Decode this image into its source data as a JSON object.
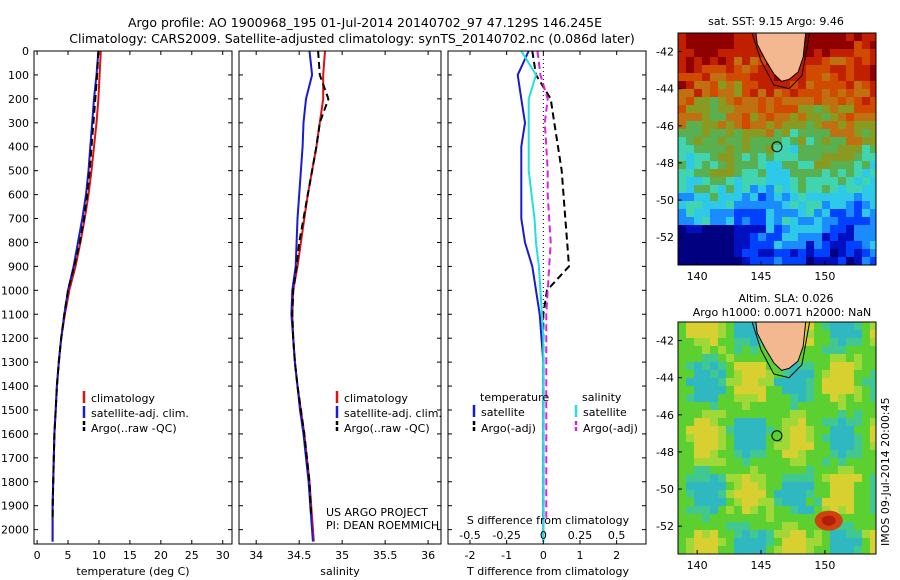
{
  "header": {
    "line1": "Argo profile: AO 1900968_195 01-Jul-2014 20140702_97 47.129S 146.245E",
    "line2": "Climatology: CARS2009. Satellite-adjusted climatology: synTS_20140702.nc (0.086d later)"
  },
  "colors": {
    "climatology": "#e01010",
    "satellite": "#1a1ad6",
    "argo": "#000000",
    "cyan": "#22e0e0",
    "magenta": "#e020e0"
  },
  "chart_data": [
    {
      "type": "line",
      "panel": "temperature",
      "xlabel": "temperature (deg C)",
      "ylabel": "",
      "xlim": [
        -0.5,
        31.5
      ],
      "ylim": [
        2060,
        0
      ],
      "xticks": [
        0,
        5,
        10,
        15,
        20,
        25,
        30
      ],
      "yticks": [
        0,
        100,
        200,
        300,
        400,
        500,
        600,
        700,
        800,
        900,
        1000,
        1100,
        1200,
        1300,
        1400,
        1500,
        1600,
        1700,
        1800,
        1900,
        2000
      ],
      "legend": [
        "climatology",
        "satellite-adj. clim.",
        "Argo(..raw -QC)"
      ],
      "legend_placement": "lower-right",
      "series": [
        {
          "name": "climatology",
          "x": [
            10.3,
            10.1,
            9.9,
            9.6,
            9.2,
            8.8,
            8.3,
            7.7,
            7.0,
            6.2,
            5.2,
            4.5,
            3.9,
            3.5,
            3.2,
            3.0,
            2.8,
            2.7,
            2.6,
            2.5,
            2.5
          ],
          "y": [
            0,
            100,
            200,
            300,
            400,
            500,
            600,
            700,
            800,
            900,
            1000,
            1100,
            1200,
            1300,
            1400,
            1500,
            1600,
            1700,
            1800,
            1900,
            2050
          ]
        },
        {
          "name": "satellite-adj. clim.",
          "x": [
            9.9,
            9.6,
            9.2,
            8.9,
            8.6,
            8.3,
            7.9,
            7.3,
            6.6,
            5.9,
            5.0,
            4.4,
            3.9,
            3.5,
            3.2,
            3.0,
            2.8,
            2.7,
            2.6,
            2.5,
            2.5
          ],
          "y": [
            0,
            100,
            200,
            300,
            400,
            500,
            600,
            700,
            800,
            900,
            1000,
            1100,
            1200,
            1300,
            1400,
            1500,
            1600,
            1700,
            1800,
            1900,
            2050
          ]
        },
        {
          "name": "Argo(..raw -QC)",
          "x": [
            9.9,
            9.7,
            9.4,
            9.1,
            8.8,
            8.5,
            8.1,
            7.6,
            6.9,
            6.0,
            5.0,
            4.4,
            3.9,
            3.5,
            3.2,
            3.0,
            2.8,
            2.7,
            2.6,
            2.5
          ],
          "y": [
            0,
            100,
            200,
            300,
            400,
            500,
            600,
            700,
            800,
            900,
            1000,
            1100,
            1200,
            1300,
            1400,
            1500,
            1600,
            1700,
            1800,
            1950
          ]
        }
      ]
    },
    {
      "type": "line",
      "panel": "salinity",
      "xlabel": "salinity",
      "ylabel": "",
      "xlim": [
        33.8,
        36.15
      ],
      "ylim": [
        2060,
        0
      ],
      "xticks": [
        34,
        34.5,
        35,
        35.5,
        36
      ],
      "legend": [
        "climatology",
        "satellite-adj. clim.",
        "Argo(..raw -QC)"
      ],
      "legend_placement": "lower-right",
      "annotation_lines": [
        "US ARGO PROJECT",
        "PI: DEAN ROEMMICH"
      ],
      "series": [
        {
          "name": "climatology",
          "x": [
            34.8,
            34.78,
            34.78,
            34.74,
            34.7,
            34.65,
            34.6,
            34.56,
            34.52,
            34.48,
            34.43,
            34.42,
            34.43,
            34.45,
            34.48,
            34.52,
            34.56,
            34.59,
            34.62,
            34.64,
            34.67
          ],
          "y": [
            0,
            100,
            200,
            300,
            400,
            500,
            600,
            700,
            800,
            900,
            1000,
            1100,
            1200,
            1300,
            1400,
            1500,
            1600,
            1700,
            1800,
            1900,
            2050
          ]
        },
        {
          "name": "satellite-adj. clim.",
          "x": [
            34.62,
            34.65,
            34.58,
            34.55,
            34.54,
            34.52,
            34.5,
            34.48,
            34.47,
            34.46,
            34.42,
            34.41,
            34.43,
            34.45,
            34.48,
            34.51,
            34.55,
            34.58,
            34.61,
            34.63,
            34.66
          ],
          "y": [
            0,
            100,
            200,
            300,
            400,
            500,
            600,
            700,
            800,
            900,
            1000,
            1100,
            1200,
            1300,
            1400,
            1500,
            1600,
            1700,
            1800,
            1900,
            2050
          ]
        },
        {
          "name": "Argo(..raw -QC)",
          "x": [
            34.72,
            34.74,
            34.84,
            34.74,
            34.7,
            34.65,
            34.6,
            34.55,
            34.5,
            34.47,
            34.43,
            34.42,
            34.43,
            34.45,
            34.48,
            34.52,
            34.56,
            34.59,
            34.62,
            34.64
          ],
          "y": [
            0,
            100,
            200,
            300,
            400,
            500,
            600,
            700,
            800,
            900,
            1000,
            1100,
            1200,
            1300,
            1400,
            1500,
            1600,
            1700,
            1800,
            1950
          ]
        }
      ]
    },
    {
      "type": "line",
      "panel": "difference",
      "xlabel": "T difference from climatology",
      "xlabel2": "S difference from climatology",
      "ylabel": "",
      "xlim": [
        -2.6,
        2.8
      ],
      "ylim": [
        2060,
        0
      ],
      "xticks": [
        -2,
        -1,
        0,
        1,
        2
      ],
      "xticks2": [
        -0.5,
        -0.25,
        0,
        0.25,
        0.5
      ],
      "legend_headings": [
        "temperature",
        "salinity"
      ],
      "legend": [
        "satellite",
        "Argo(-adj)",
        "satellite",
        "Argo(-adj)"
      ],
      "legend_placement": "lower-center",
      "series": [
        {
          "name": "satellite",
          "x": [
            -0.4,
            -0.7,
            -0.6,
            -0.5,
            -0.6,
            -0.6,
            -0.6,
            -0.6,
            -0.5,
            -0.3,
            -0.2,
            -0.1,
            -0.05,
            0,
            0,
            0,
            0,
            0,
            0,
            0,
            0
          ],
          "y": [
            0,
            100,
            200,
            300,
            400,
            500,
            600,
            700,
            800,
            900,
            1000,
            1100,
            1200,
            1300,
            1400,
            1500,
            1600,
            1700,
            1800,
            1900,
            2050
          ]
        },
        {
          "name": "Argo(-adj)",
          "x": [
            -0.3,
            -0.2,
            0.2,
            0.3,
            0.4,
            0.5,
            0.55,
            0.6,
            0.65,
            0.7,
            0.1,
            0,
            0,
            0,
            0,
            0,
            0,
            0,
            0,
            0
          ],
          "y": [
            0,
            100,
            200,
            300,
            400,
            500,
            600,
            700,
            800,
            900,
            1000,
            1100,
            1200,
            1300,
            1400,
            1500,
            1600,
            1700,
            1800,
            1950
          ]
        },
        {
          "name": "satellite",
          "x": [
            -0.15,
            -0.05,
            -0.1,
            -0.1,
            -0.1,
            -0.1,
            -0.08,
            -0.06,
            -0.05,
            -0.03,
            -0.02,
            -0.01,
            0,
            0,
            0,
            0,
            0,
            0,
            0,
            0,
            0
          ],
          "y": [
            0,
            100,
            200,
            300,
            400,
            500,
            600,
            700,
            800,
            900,
            1000,
            1100,
            1200,
            1300,
            1400,
            1500,
            1600,
            1700,
            1800,
            1900,
            2050
          ]
        },
        {
          "name": "Argo(-adj)",
          "x": [
            -0.04,
            -0.02,
            0.03,
            0.01,
            0.02,
            0.03,
            0.03,
            0.04,
            0.05,
            0.04,
            0.03,
            0.02,
            0.02,
            0.02,
            0.02,
            0.02,
            0.02,
            0.02,
            0.02,
            0.02
          ],
          "y": [
            0,
            100,
            200,
            300,
            400,
            500,
            600,
            700,
            800,
            900,
            1000,
            1100,
            1200,
            1300,
            1400,
            1500,
            1600,
            1700,
            1800,
            1950
          ]
        }
      ]
    },
    {
      "type": "heatmap",
      "panel": "sst-map",
      "title": "sat. SST: 9.15  Argo: 9.46",
      "xlim": [
        138.5,
        154
      ],
      "ylim": [
        -53.5,
        -41
      ],
      "xticks": [
        140,
        145,
        150
      ],
      "yticks": [
        -42,
        -44,
        -46,
        -48,
        -50,
        -52
      ],
      "marker": {
        "lon": 146.245,
        "lat": -47.129
      }
    },
    {
      "type": "heatmap",
      "panel": "sla-map",
      "title": "Altim. SLA: 0.026",
      "subtitle": "Argo h1000: 0.0071  h2000: NaN",
      "xlim": [
        138.5,
        154
      ],
      "ylim": [
        -53.5,
        -41
      ],
      "xticks": [
        140,
        145,
        150
      ],
      "yticks": [
        -42,
        -44,
        -46,
        -48,
        -50,
        -52
      ],
      "marker": {
        "lon": 146.245,
        "lat": -47.129
      }
    }
  ],
  "side_stamp": "IMOS 09-Jul-2014 20:00:45"
}
